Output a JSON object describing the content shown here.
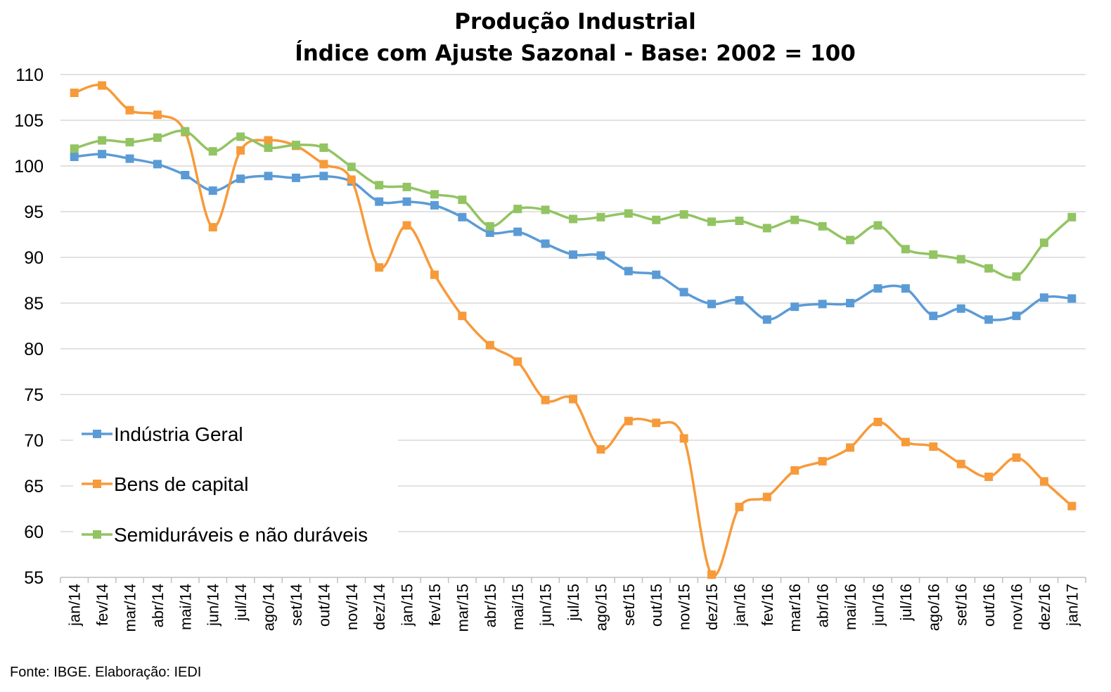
{
  "chart_data": {
    "type": "line",
    "title": [
      "Produção Industrial",
      "Índice com Ajuste Sazonal - Base: 2002 = 100"
    ],
    "xlabel": "",
    "ylabel": "",
    "ylim": [
      55,
      110
    ],
    "yticks": [
      "55",
      "60",
      "65",
      "70",
      "75",
      "80",
      "85",
      "90",
      "95",
      "100",
      "105",
      "110"
    ],
    "ytick_values": [
      55,
      60,
      65,
      70,
      75,
      80,
      85,
      90,
      95,
      100,
      105,
      110
    ],
    "grid": true,
    "legend_position": "bottom-left",
    "categories": [
      "jan/14",
      "fev/14",
      "mar/14",
      "abr/14",
      "mai/14",
      "jun/14",
      "jul/14",
      "ago/14",
      "set/14",
      "out/14",
      "nov/14",
      "dez/14",
      "jan/15",
      "fev/15",
      "mar/15",
      "abr/15",
      "mai/15",
      "jun/15",
      "jul/15",
      "ago/15",
      "set/15",
      "out/15",
      "nov/15",
      "dez/15",
      "jan/16",
      "fev/16",
      "mar/16",
      "abr/16",
      "mai/16",
      "jun/16",
      "jul/16",
      "ago/16",
      "set/16",
      "out/16",
      "nov/16",
      "dez/16",
      "jan/17"
    ],
    "series": [
      {
        "name": "Indústria Geral",
        "color": "#5b9bd5",
        "values": [
          101.0,
          101.3,
          100.8,
          100.2,
          99.0,
          97.3,
          98.6,
          98.9,
          98.7,
          98.9,
          98.3,
          96.1,
          96.1,
          95.7,
          94.4,
          92.7,
          92.8,
          91.5,
          90.3,
          90.2,
          88.5,
          88.1,
          86.2,
          84.9,
          85.3,
          83.2,
          84.6,
          84.9,
          85.0,
          86.6,
          86.6,
          83.6,
          84.4,
          83.2,
          83.6,
          85.6,
          85.5
        ]
      },
      {
        "name": "Bens de capital",
        "color": "#f79a3a",
        "values": [
          108.0,
          108.8,
          106.1,
          105.6,
          103.7,
          93.3,
          101.7,
          102.8,
          102.2,
          100.2,
          98.5,
          88.9,
          93.5,
          88.1,
          83.6,
          80.4,
          78.6,
          74.4,
          74.5,
          69.0,
          72.1,
          71.9,
          70.2,
          55.3,
          62.7,
          63.8,
          66.7,
          67.7,
          69.2,
          72.0,
          69.8,
          69.3,
          67.4,
          66.0,
          68.1,
          65.5,
          62.8
        ]
      },
      {
        "name": "Semiduráveis e não duráveis",
        "color": "#92c462",
        "values": [
          101.9,
          102.8,
          102.6,
          103.1,
          103.8,
          101.6,
          103.2,
          102.0,
          102.3,
          102.0,
          99.9,
          97.9,
          97.7,
          96.9,
          96.3,
          93.4,
          95.3,
          95.2,
          94.2,
          94.4,
          94.8,
          94.1,
          94.7,
          93.9,
          94.0,
          93.2,
          94.1,
          93.4,
          91.9,
          93.5,
          90.9,
          90.3,
          89.8,
          88.8,
          87.9,
          91.6,
          94.4
        ]
      }
    ]
  },
  "source_note": "Fonte: IBGE. Elaboração: IEDI"
}
